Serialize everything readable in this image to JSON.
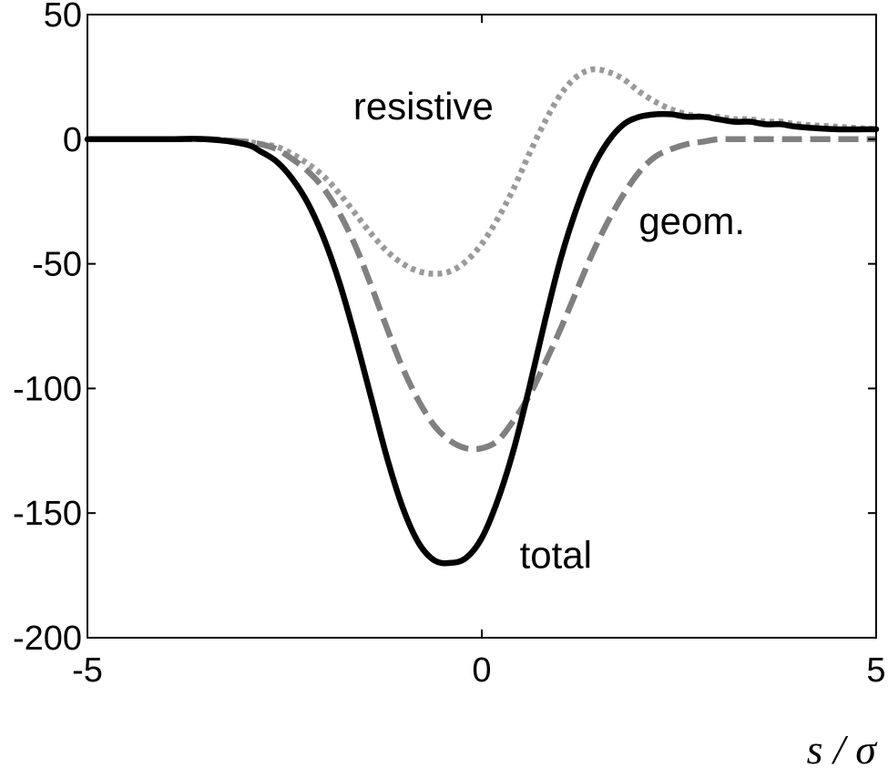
{
  "chart_data": {
    "type": "line",
    "title": "",
    "xlabel": "s / σ",
    "ylabel": "",
    "xlim": [
      -5,
      5
    ],
    "ylim": [
      -200,
      50
    ],
    "x_ticks": [
      -5,
      0,
      5
    ],
    "x_tick_labels": [
      "-5",
      "0",
      "5"
    ],
    "y_ticks": [
      -200,
      -150,
      -100,
      -50,
      0,
      50
    ],
    "y_tick_labels": [
      "-200",
      "-150",
      "-100",
      "-50",
      "0",
      "50"
    ],
    "grid": false,
    "legend": "none",
    "x": [
      -5,
      -4.5,
      -4,
      -3.5,
      -3,
      -2.8,
      -2.6,
      -2.4,
      -2.2,
      -2,
      -1.8,
      -1.6,
      -1.4,
      -1.2,
      -1,
      -0.8,
      -0.6,
      -0.4,
      -0.2,
      0,
      0.2,
      0.4,
      0.6,
      0.8,
      1,
      1.2,
      1.4,
      1.6,
      1.8,
      2,
      2.2,
      2.4,
      2.6,
      2.8,
      3,
      3.2,
      3.4,
      3.6,
      3.8,
      4,
      4.5,
      5
    ],
    "series": [
      {
        "name": "resistive",
        "color": "#9a9a9a",
        "line_style": "dotted",
        "values": [
          0,
          0,
          0,
          0,
          -1,
          -2,
          -3,
          -6,
          -10,
          -15,
          -22,
          -30,
          -38,
          -45,
          -50,
          -53,
          -54,
          -53,
          -49,
          -42,
          -32,
          -20,
          -6,
          7,
          18,
          25,
          28,
          27,
          24,
          19,
          15,
          12,
          10,
          9,
          9,
          8,
          8,
          7,
          7,
          6,
          5,
          4
        ]
      },
      {
        "name": "geom.",
        "color": "#808080",
        "line_style": "dashed",
        "values": [
          0,
          0,
          0,
          0,
          -1,
          -2,
          -4,
          -8,
          -13,
          -20,
          -30,
          -43,
          -59,
          -76,
          -92,
          -105,
          -115,
          -121,
          -124,
          -124,
          -121,
          -113,
          -103,
          -90,
          -76,
          -61,
          -46,
          -33,
          -22,
          -13,
          -7,
          -4,
          -2,
          -1,
          0,
          0,
          0,
          0,
          0,
          0,
          0,
          0
        ]
      },
      {
        "name": "total",
        "color": "#000000",
        "line_style": "solid",
        "values": [
          0,
          0,
          0,
          0,
          -2,
          -5,
          -9,
          -16,
          -26,
          -40,
          -58,
          -80,
          -104,
          -128,
          -148,
          -162,
          -169,
          -170,
          -168,
          -160,
          -145,
          -125,
          -100,
          -73,
          -48,
          -28,
          -12,
          -1,
          6,
          9,
          10,
          10,
          9,
          9,
          8,
          7,
          7,
          6,
          6,
          5,
          4,
          4
        ]
      }
    ],
    "annotations": [
      {
        "text": "resistive",
        "x": -1.63,
        "y": 8
      },
      {
        "text": "geom.",
        "x": 1.99,
        "y": -38
      },
      {
        "text": "total",
        "x": 0.48,
        "y": -172
      }
    ]
  }
}
